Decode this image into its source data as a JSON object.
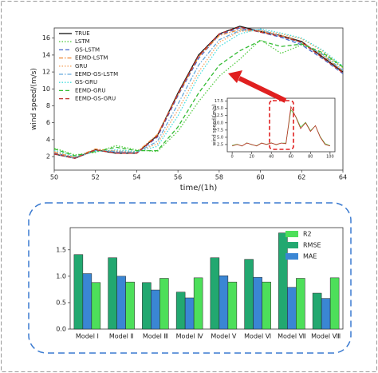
{
  "chart_data": [
    {
      "type": "line",
      "xlabel": "time/(1h)",
      "ylabel": "wind speed/(m/s)",
      "x": [
        50,
        51,
        52,
        53,
        54,
        55,
        56,
        57,
        58,
        59,
        60,
        61,
        62,
        63,
        64
      ],
      "xlim": [
        50,
        64
      ],
      "xticks": [
        50,
        52,
        54,
        56,
        58,
        60,
        62,
        64
      ],
      "ylim": [
        0.4,
        17.2
      ],
      "yticks": [
        2,
        4,
        6,
        8,
        10,
        12,
        14,
        16
      ],
      "legend": "upper left",
      "series": [
        {
          "name": "TRUE",
          "color": "#111111",
          "dash": "solid",
          "values": [
            2.3,
            1.8,
            2.8,
            2.4,
            2.4,
            4.5,
            9.5,
            14.0,
            16.5,
            17.4,
            16.8,
            16.3,
            15.6,
            13.8,
            12.0
          ]
        },
        {
          "name": "LSTM",
          "color": "#55cc44",
          "dash": "dotted",
          "values": [
            3.0,
            2.2,
            2.5,
            3.3,
            2.8,
            2.6,
            5.0,
            8.5,
            11.5,
            13.5,
            15.8,
            14.2,
            15.2,
            14.2,
            12.5
          ]
        },
        {
          "name": "GS-LSTM",
          "color": "#4466cc",
          "dash": "dashed",
          "values": [
            2.4,
            1.9,
            2.8,
            2.5,
            2.4,
            4.3,
            9.2,
            13.6,
            16.4,
            17.2,
            16.7,
            16.1,
            15.2,
            13.6,
            11.8
          ]
        },
        {
          "name": "EEMD-LSTM",
          "color": "#ee8833",
          "dash": "dashdot",
          "values": [
            2.5,
            1.9,
            2.9,
            2.6,
            2.5,
            4.6,
            9.3,
            13.8,
            16.3,
            17.0,
            16.8,
            16.3,
            15.5,
            14.0,
            12.1
          ]
        },
        {
          "name": "GRU",
          "color": "#f4a460",
          "dash": "dotted",
          "values": [
            2.6,
            1.9,
            2.7,
            2.7,
            2.6,
            3.5,
            7.5,
            12.0,
            15.5,
            16.8,
            16.9,
            16.5,
            15.9,
            14.5,
            12.5
          ]
        },
        {
          "name": "EEMD-GS-LSTM",
          "color": "#66aadd",
          "dash": "dashdot",
          "values": [
            2.3,
            1.8,
            2.7,
            2.6,
            2.5,
            3.8,
            8.2,
            12.8,
            15.8,
            16.9,
            17.0,
            16.2,
            15.4,
            14.1,
            12.2
          ]
        },
        {
          "name": "GS-GRU",
          "color": "#44dddd",
          "dash": "dotted",
          "values": [
            2.7,
            2.0,
            2.6,
            2.8,
            2.6,
            3.2,
            6.8,
            11.5,
            15.0,
            16.5,
            17.1,
            16.6,
            16.0,
            14.6,
            12.7
          ]
        },
        {
          "name": "EEMD-GRU",
          "color": "#33bb33",
          "dash": "dashed",
          "values": [
            2.9,
            2.1,
            2.6,
            3.1,
            2.7,
            2.7,
            5.5,
            9.5,
            12.8,
            14.5,
            15.7,
            15.0,
            15.3,
            14.3,
            12.6
          ]
        },
        {
          "name": "EEMD-GS-GRU",
          "color": "#c0302a",
          "dash": "dashed",
          "values": [
            2.3,
            1.8,
            2.8,
            2.4,
            2.4,
            4.4,
            9.4,
            13.9,
            16.5,
            17.3,
            16.7,
            16.2,
            15.5,
            13.7,
            11.9
          ]
        }
      ]
    },
    {
      "type": "line",
      "ylabel": "wind speed/(m/s)",
      "x": [
        0,
        5,
        10,
        15,
        20,
        25,
        30,
        35,
        40,
        45,
        50,
        55,
        60,
        65,
        70,
        75,
        80,
        85,
        90,
        95,
        100
      ],
      "xlim": [
        -5,
        105
      ],
      "xticks": [
        0,
        20,
        40,
        60,
        80,
        100
      ],
      "ylim": [
        0,
        18.5
      ],
      "yticks": [
        2.5,
        {
          "value": 5,
          "label": "5.0"
        },
        7.5,
        {
          "value": 10,
          "label": "10.0"
        },
        12.5,
        {
          "value": 15,
          "label": "15.0"
        },
        17.5
      ],
      "series": [
        {
          "color": "#55cc44",
          "dash": "solid",
          "values": [
            2.2,
            2.6,
            2.0,
            3.1,
            2.4,
            2.1,
            3.0,
            2.6,
            3.1,
            2.4,
            3.0,
            3.0,
            14.5,
            12.2,
            8.5,
            10.2,
            7.3,
            9.0,
            5.2,
            2.8,
            2.1
          ]
        },
        {
          "color": "#c0302a",
          "dash": "solid",
          "values": [
            2.0,
            2.5,
            2.0,
            3.0,
            2.5,
            2.0,
            3.0,
            2.5,
            3.0,
            2.5,
            3.0,
            2.8,
            15.6,
            12.0,
            8.0,
            10.0,
            7.0,
            9.0,
            5.0,
            2.5,
            2.0
          ]
        }
      ]
    },
    {
      "type": "bar",
      "categories": [
        "Model Ⅰ",
        "Model Ⅱ",
        "Model Ⅲ",
        "Model Ⅳ",
        "Model Ⅴ",
        "Model Ⅵ",
        "Model Ⅶ",
        "Model Ⅷ"
      ],
      "ylim": [
        0,
        1.92
      ],
      "yticks": [
        {
          "value": 0,
          "label": "0.0"
        },
        {
          "value": 0.5,
          "label": "0.5"
        },
        {
          "value": 1,
          "label": "1.0"
        },
        {
          "value": 1.5,
          "label": "1.5"
        }
      ],
      "legend": "upper right",
      "bar_order": [
        1,
        2,
        0
      ],
      "series": [
        {
          "name": "R2",
          "color": "#4ddf5a",
          "values": [
            0.88,
            0.89,
            0.96,
            0.97,
            0.89,
            0.89,
            0.96,
            0.97
          ]
        },
        {
          "name": "RMSE",
          "color": "#22a870",
          "values": [
            1.41,
            1.35,
            0.88,
            0.7,
            1.35,
            1.32,
            1.82,
            0.68
          ]
        },
        {
          "name": "MAE",
          "color": "#3a86d4",
          "values": [
            1.05,
            1.0,
            0.74,
            0.59,
            1.01,
            0.98,
            0.79,
            0.58
          ]
        }
      ]
    }
  ]
}
